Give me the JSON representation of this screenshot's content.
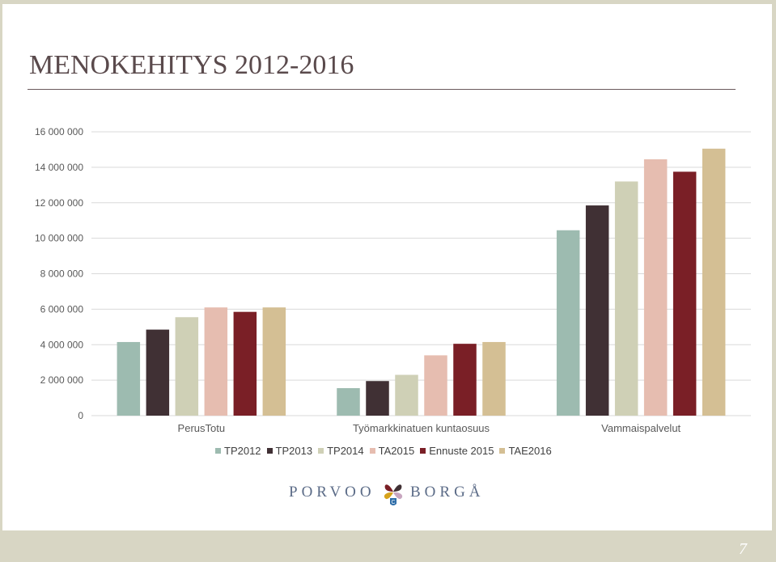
{
  "slide": {
    "title": "MENOKEHITYS 2012-2016",
    "page_number": "7"
  },
  "logo": {
    "left_text": "PORVOO",
    "right_text": "BORGÅ",
    "emblem_letter": "C"
  },
  "chart_data": {
    "type": "bar",
    "title": "",
    "xlabel": "",
    "ylabel": "",
    "ylim": [
      0,
      16000000
    ],
    "yticks": [
      {
        "value": 0,
        "label": "0"
      },
      {
        "value": 2000000,
        "label": "2 000 000"
      },
      {
        "value": 4000000,
        "label": "4 000 000"
      },
      {
        "value": 6000000,
        "label": "6 000 000"
      },
      {
        "value": 8000000,
        "label": "8 000 000"
      },
      {
        "value": 10000000,
        "label": "10 000 000"
      },
      {
        "value": 12000000,
        "label": "12 000 000"
      },
      {
        "value": 14000000,
        "label": "14 000 000"
      },
      {
        "value": 16000000,
        "label": "16 000 000"
      }
    ],
    "grid": true,
    "legend_position": "bottom",
    "categories": [
      "PerusTotu",
      "Työmarkkinatuen kuntaosuus",
      "Vammaispalvelut"
    ],
    "series": [
      {
        "name": "TP2012",
        "color": "#9dbbb0",
        "values": [
          4150000,
          1550000,
          10450000
        ]
      },
      {
        "name": "TP2013",
        "color": "#403034",
        "values": [
          4850000,
          1950000,
          11850000
        ]
      },
      {
        "name": "TP2014",
        "color": "#cfd0b6",
        "values": [
          5550000,
          2300000,
          13200000
        ]
      },
      {
        "name": "TA2015",
        "color": "#e6bdb0",
        "values": [
          6100000,
          3400000,
          14450000
        ]
      },
      {
        "name": "Ennuste 2015",
        "color": "#7a1f26",
        "values": [
          5850000,
          4050000,
          13750000
        ]
      },
      {
        "name": "TAE2016",
        "color": "#d4bf94",
        "values": [
          6100000,
          4150000,
          15050000
        ]
      }
    ]
  }
}
